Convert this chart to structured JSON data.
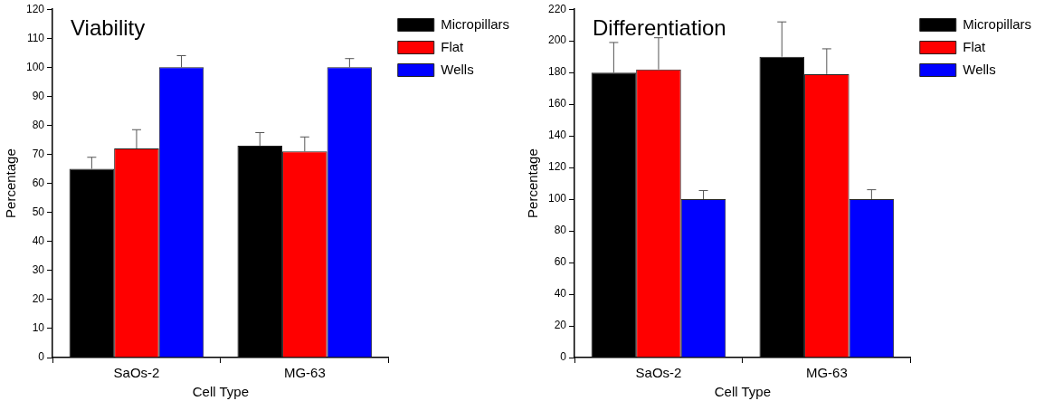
{
  "chart_data": [
    {
      "type": "bar",
      "title": "Viability",
      "xlabel": "Cell Type",
      "ylabel": "Percentage",
      "categories": [
        "SaOs-2",
        "MG-63"
      ],
      "series": [
        {
          "name": "Micropillars",
          "color": "#000000",
          "values": [
            65,
            73
          ],
          "errors": [
            [
              65,
              69
            ],
            [
              73,
              77.5
            ]
          ]
        },
        {
          "name": "Flat",
          "color": "#ff0000",
          "values": [
            72,
            71
          ],
          "errors": [
            [
              72,
              78.5
            ],
            [
              71,
              76
            ]
          ]
        },
        {
          "name": "Wells",
          "color": "#0000ff",
          "values": [
            100,
            100
          ],
          "errors": [
            [
              100,
              104
            ],
            [
              100,
              103
            ]
          ]
        }
      ],
      "ylim": [
        0,
        120
      ],
      "yticks": [
        0,
        10,
        20,
        30,
        40,
        50,
        60,
        70,
        80,
        90,
        100,
        110,
        120
      ],
      "legend": "top right"
    },
    {
      "type": "bar",
      "title": "Differentiation",
      "xlabel": "Cell Type",
      "ylabel": "Percentage",
      "categories": [
        "SaOs-2",
        "MG-63"
      ],
      "series": [
        {
          "name": "Micropillars",
          "color": "#000000",
          "values": [
            180,
            190
          ],
          "errors": [
            [
              180,
              199
            ],
            [
              190,
              212
            ]
          ]
        },
        {
          "name": "Flat",
          "color": "#ff0000",
          "values": [
            182,
            179
          ],
          "errors": [
            [
              182,
              202
            ],
            [
              179,
              195
            ]
          ]
        },
        {
          "name": "Wells",
          "color": "#0000ff",
          "values": [
            100,
            100
          ],
          "errors": [
            [
              100,
              105.5
            ],
            [
              100,
              106
            ]
          ]
        }
      ],
      "ylim": [
        0,
        220
      ],
      "yticks": [
        0,
        20,
        40,
        60,
        80,
        100,
        120,
        140,
        160,
        180,
        200,
        220
      ],
      "legend": "top right"
    }
  ]
}
